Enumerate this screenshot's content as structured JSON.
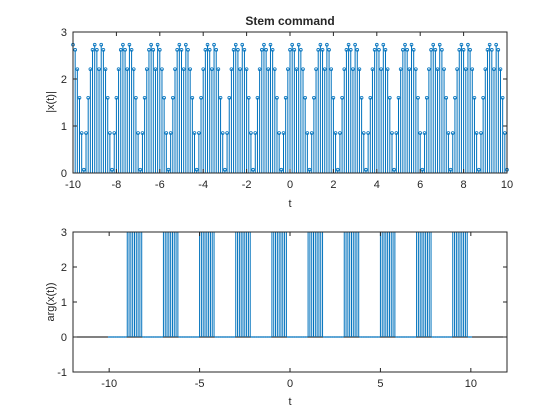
{
  "colors": {
    "stem": "#0072BD",
    "axes": "#262626",
    "background": "#ffffff",
    "baseline": "#000000"
  },
  "chart_data": [
    {
      "type": "stem",
      "title": "Stem command",
      "xlabel": "t",
      "ylabel": "|x(t)|",
      "xlim": [
        -10,
        10
      ],
      "ylim": [
        0,
        3
      ],
      "xticks": [
        "-10",
        "-8",
        "-6",
        "-4",
        "-2",
        "0",
        "2",
        "4",
        "6",
        "8",
        "10"
      ],
      "yticks": [
        "0",
        "1",
        "2",
        "3"
      ],
      "sample_step": 0.1,
      "period": 1.3,
      "magnitude_pattern": [
        2.73,
        2.62,
        2.21,
        1.6,
        0.85,
        0.07,
        0.85,
        1.6,
        2.21,
        2.62,
        2.73,
        2.62,
        2.21
      ],
      "marker": "dot"
    },
    {
      "type": "stem",
      "title": "",
      "xlabel": "t",
      "ylabel": "arg(x(t))",
      "xlim": [
        -12,
        12
      ],
      "ylim": [
        -1,
        3
      ],
      "xticks": [
        "-10",
        "-5",
        "0",
        "5",
        "10"
      ],
      "yticks": [
        "-1",
        "0",
        "1",
        "2",
        "3"
      ],
      "sample_step": 0.1,
      "period": 2.0,
      "phase_bursts": [
        {
          "from": -9.0,
          "to": -8.2,
          "value": 3.14
        },
        {
          "from": -7.0,
          "to": -6.2,
          "value": 3.14
        },
        {
          "from": -5.0,
          "to": -4.2,
          "value": 3.14
        },
        {
          "from": -3.0,
          "to": -2.2,
          "value": 3.14
        },
        {
          "from": -1.0,
          "to": -0.2,
          "value": 3.14
        },
        {
          "from": 1.0,
          "to": 1.8,
          "value": 3.14
        },
        {
          "from": 3.0,
          "to": 3.8,
          "value": 3.14
        },
        {
          "from": 5.0,
          "to": 5.8,
          "value": 3.14
        },
        {
          "from": 7.0,
          "to": 7.8,
          "value": 3.14
        },
        {
          "from": 9.0,
          "to": 9.8,
          "value": 3.14
        }
      ],
      "baseline_value": 0,
      "marker": "none"
    }
  ]
}
